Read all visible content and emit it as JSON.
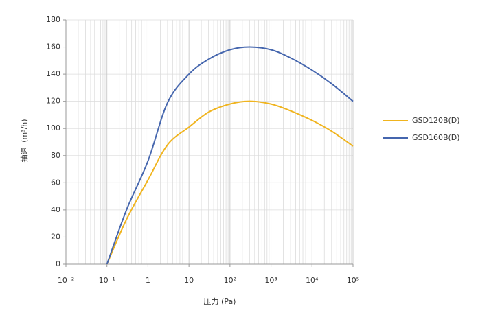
{
  "chart_data": {
    "type": "line",
    "xlabel": "压力 (Pa)",
    "ylabel": "抽速（m³/h)",
    "xscale": "log",
    "grid": true,
    "legend": "right",
    "x": [
      0.1,
      0.3,
      1,
      3,
      10,
      30,
      100,
      300,
      1000,
      3000,
      10000,
      30000,
      100000
    ],
    "series": [
      {
        "name": "GSD120B(D)",
        "color": "#f0b41e",
        "values": [
          0,
          33,
          62,
          88,
          101,
          112,
          118,
          120,
          118,
          113,
          106,
          98,
          87
        ]
      },
      {
        "name": "GSD160B(D)",
        "color": "#4566ae",
        "values": [
          0,
          40,
          76,
          119,
          140,
          151,
          158,
          160,
          158,
          152,
          143,
          133,
          120
        ]
      }
    ],
    "xlim": [
      0.01,
      100000
    ],
    "xticks": [
      {
        "value": 0.01,
        "label": "10⁻²"
      },
      {
        "value": 0.1,
        "label": "10⁻¹"
      },
      1,
      10,
      {
        "value": 100,
        "label": "10²"
      },
      {
        "value": 1000,
        "label": "10³"
      },
      {
        "value": 10000,
        "label": "10⁴"
      },
      {
        "value": 100000,
        "label": "10⁵"
      }
    ],
    "ylim": [
      0,
      180
    ],
    "yticks": [
      0,
      20,
      40,
      60,
      80,
      100,
      120,
      140,
      160,
      180
    ]
  }
}
